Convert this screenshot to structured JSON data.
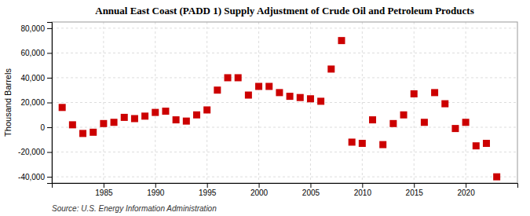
{
  "chart_data": {
    "type": "scatter",
    "title": "Annual East Coast (PADD 1) Supply Adjustment of Crude Oil and Petroleum Products",
    "ylabel": "Thousand Barrels",
    "source": "Source: U.S. Energy Information Administration",
    "x": [
      1981,
      1982,
      1983,
      1984,
      1985,
      1986,
      1987,
      1988,
      1989,
      1990,
      1991,
      1992,
      1993,
      1994,
      1995,
      1996,
      1997,
      1998,
      1999,
      2000,
      2001,
      2002,
      2003,
      2004,
      2005,
      2006,
      2007,
      2008,
      2009,
      2010,
      2011,
      2012,
      2013,
      2014,
      2015,
      2016,
      2017,
      2018,
      2019,
      2020,
      2021,
      2022,
      2023
    ],
    "values": [
      16000,
      2000,
      -5000,
      -4000,
      3000,
      4000,
      8000,
      7000,
      9000,
      12000,
      13000,
      6000,
      5000,
      10000,
      14000,
      30000,
      40000,
      40000,
      26000,
      33000,
      33000,
      28000,
      25000,
      24000,
      23000,
      21000,
      47000,
      70000,
      -12000,
      -13000,
      6000,
      -14000,
      3000,
      10000,
      27000,
      4000,
      28000,
      19000,
      -1000,
      4000,
      -15000,
      -13000,
      -40000
    ],
    "color": "#cc0000",
    "marker": "square",
    "grid": true,
    "xlim": [
      1980,
      2025
    ],
    "xticks": [
      1985,
      1990,
      1995,
      2000,
      2005,
      2010,
      2015,
      2020
    ],
    "ylim": [
      -45000,
      85000
    ],
    "yticks": [
      {
        "value": -40000,
        "label": "-40,000"
      },
      {
        "value": -20000,
        "label": "-20,000"
      },
      0,
      {
        "value": 20000,
        "label": "20,000"
      },
      {
        "value": 40000,
        "label": "40,000"
      },
      {
        "value": 60000,
        "label": "60,000"
      },
      {
        "value": 80000,
        "label": "80,000"
      }
    ]
  }
}
